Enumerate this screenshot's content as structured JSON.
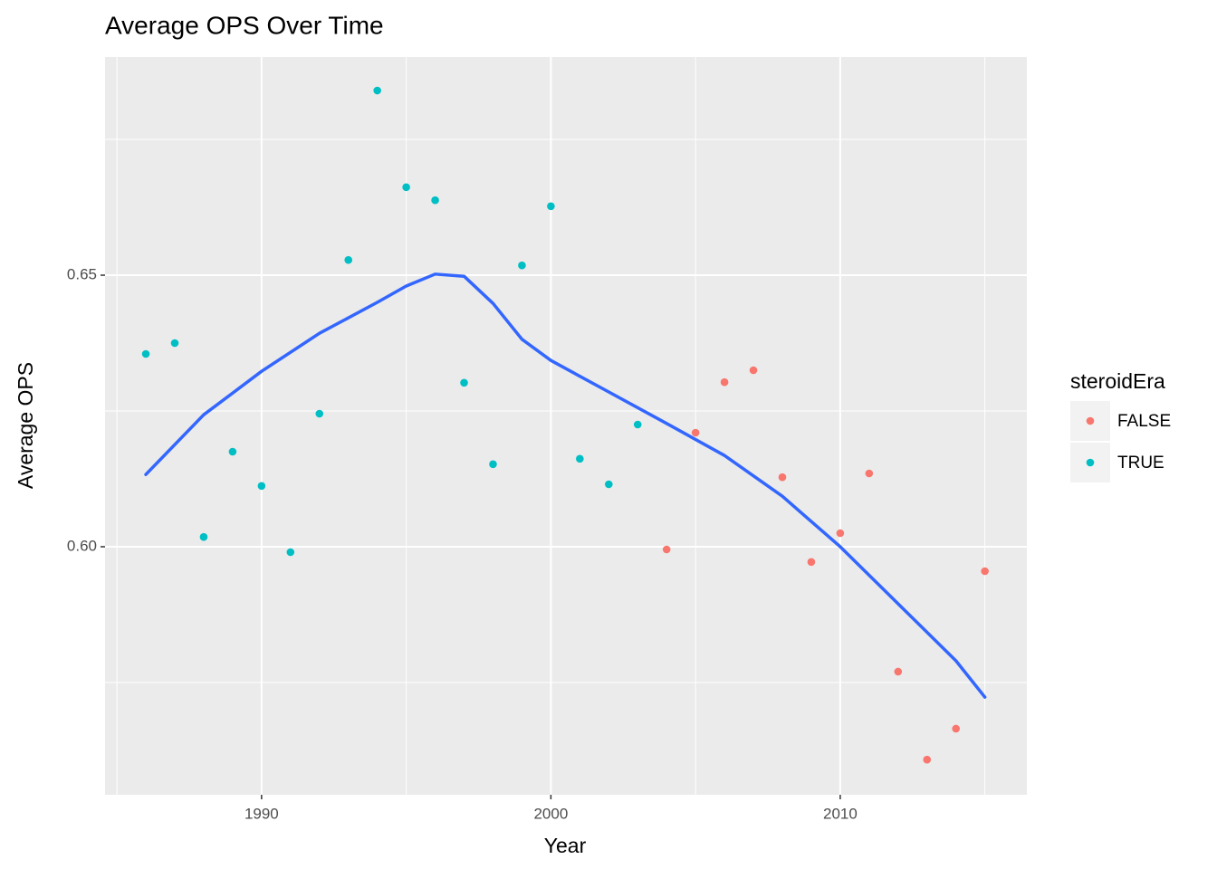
{
  "chart_data": {
    "type": "scatter",
    "title": "Average OPS Over Time",
    "x_label": "Year",
    "y_label": "Average OPS",
    "legend_title": "steroidEra",
    "legend_position": "right",
    "grid": true,
    "xlim": [
      1984.59,
      2016.45
    ],
    "ylim": [
      0.55433,
      0.69017
    ],
    "xticks": [
      1990,
      2000,
      2010
    ],
    "minor_xticks": [
      1985,
      1995,
      2005,
      2015
    ],
    "yticks": [
      {
        "value": 0.6,
        "label": "0.60"
      },
      0.65
    ],
    "minor_yticks": [
      0.575,
      0.625,
      0.675
    ],
    "series": [
      {
        "name": "FALSE",
        "color": "#F8766D",
        "x": [
          2004,
          2005,
          2006,
          2007,
          2008,
          2009,
          2010,
          2011,
          2012,
          2013,
          2014,
          2015
        ],
        "values": [
          0.5995,
          0.621,
          0.6303,
          0.6325,
          0.6128,
          0.5972,
          0.6025,
          0.6135,
          0.577,
          0.5608,
          0.5665,
          0.5955
        ]
      },
      {
        "name": "TRUE",
        "color": "#00BFC4",
        "x": [
          1986,
          1987,
          1988,
          1989,
          1990,
          1991,
          1992,
          1993,
          1994,
          1995,
          1996,
          1997,
          1998,
          1999,
          2000,
          2001,
          2002,
          2003
        ],
        "values": [
          0.6355,
          0.6375,
          0.6018,
          0.6175,
          0.6112,
          0.599,
          0.6245,
          0.6528,
          0.684,
          0.6662,
          0.6638,
          0.6302,
          0.6152,
          0.6518,
          0.6627,
          0.6162,
          0.6115,
          0.6225
        ]
      },
      {
        "type": "line",
        "color": "#3366FF",
        "x": [
          1986,
          1988,
          1990,
          1992,
          1994,
          1995,
          1996,
          1997,
          1998,
          1999,
          2000,
          2002,
          2004,
          2006,
          2008,
          2010,
          2012,
          2014,
          2015
        ],
        "values": [
          0.6133,
          0.6243,
          0.6323,
          0.6393,
          0.645,
          0.648,
          0.6502,
          0.6498,
          0.6448,
          0.6382,
          0.6343,
          0.6285,
          0.6227,
          0.6168,
          0.6093,
          0.6,
          0.5895,
          0.579,
          0.5723
        ]
      }
    ]
  }
}
